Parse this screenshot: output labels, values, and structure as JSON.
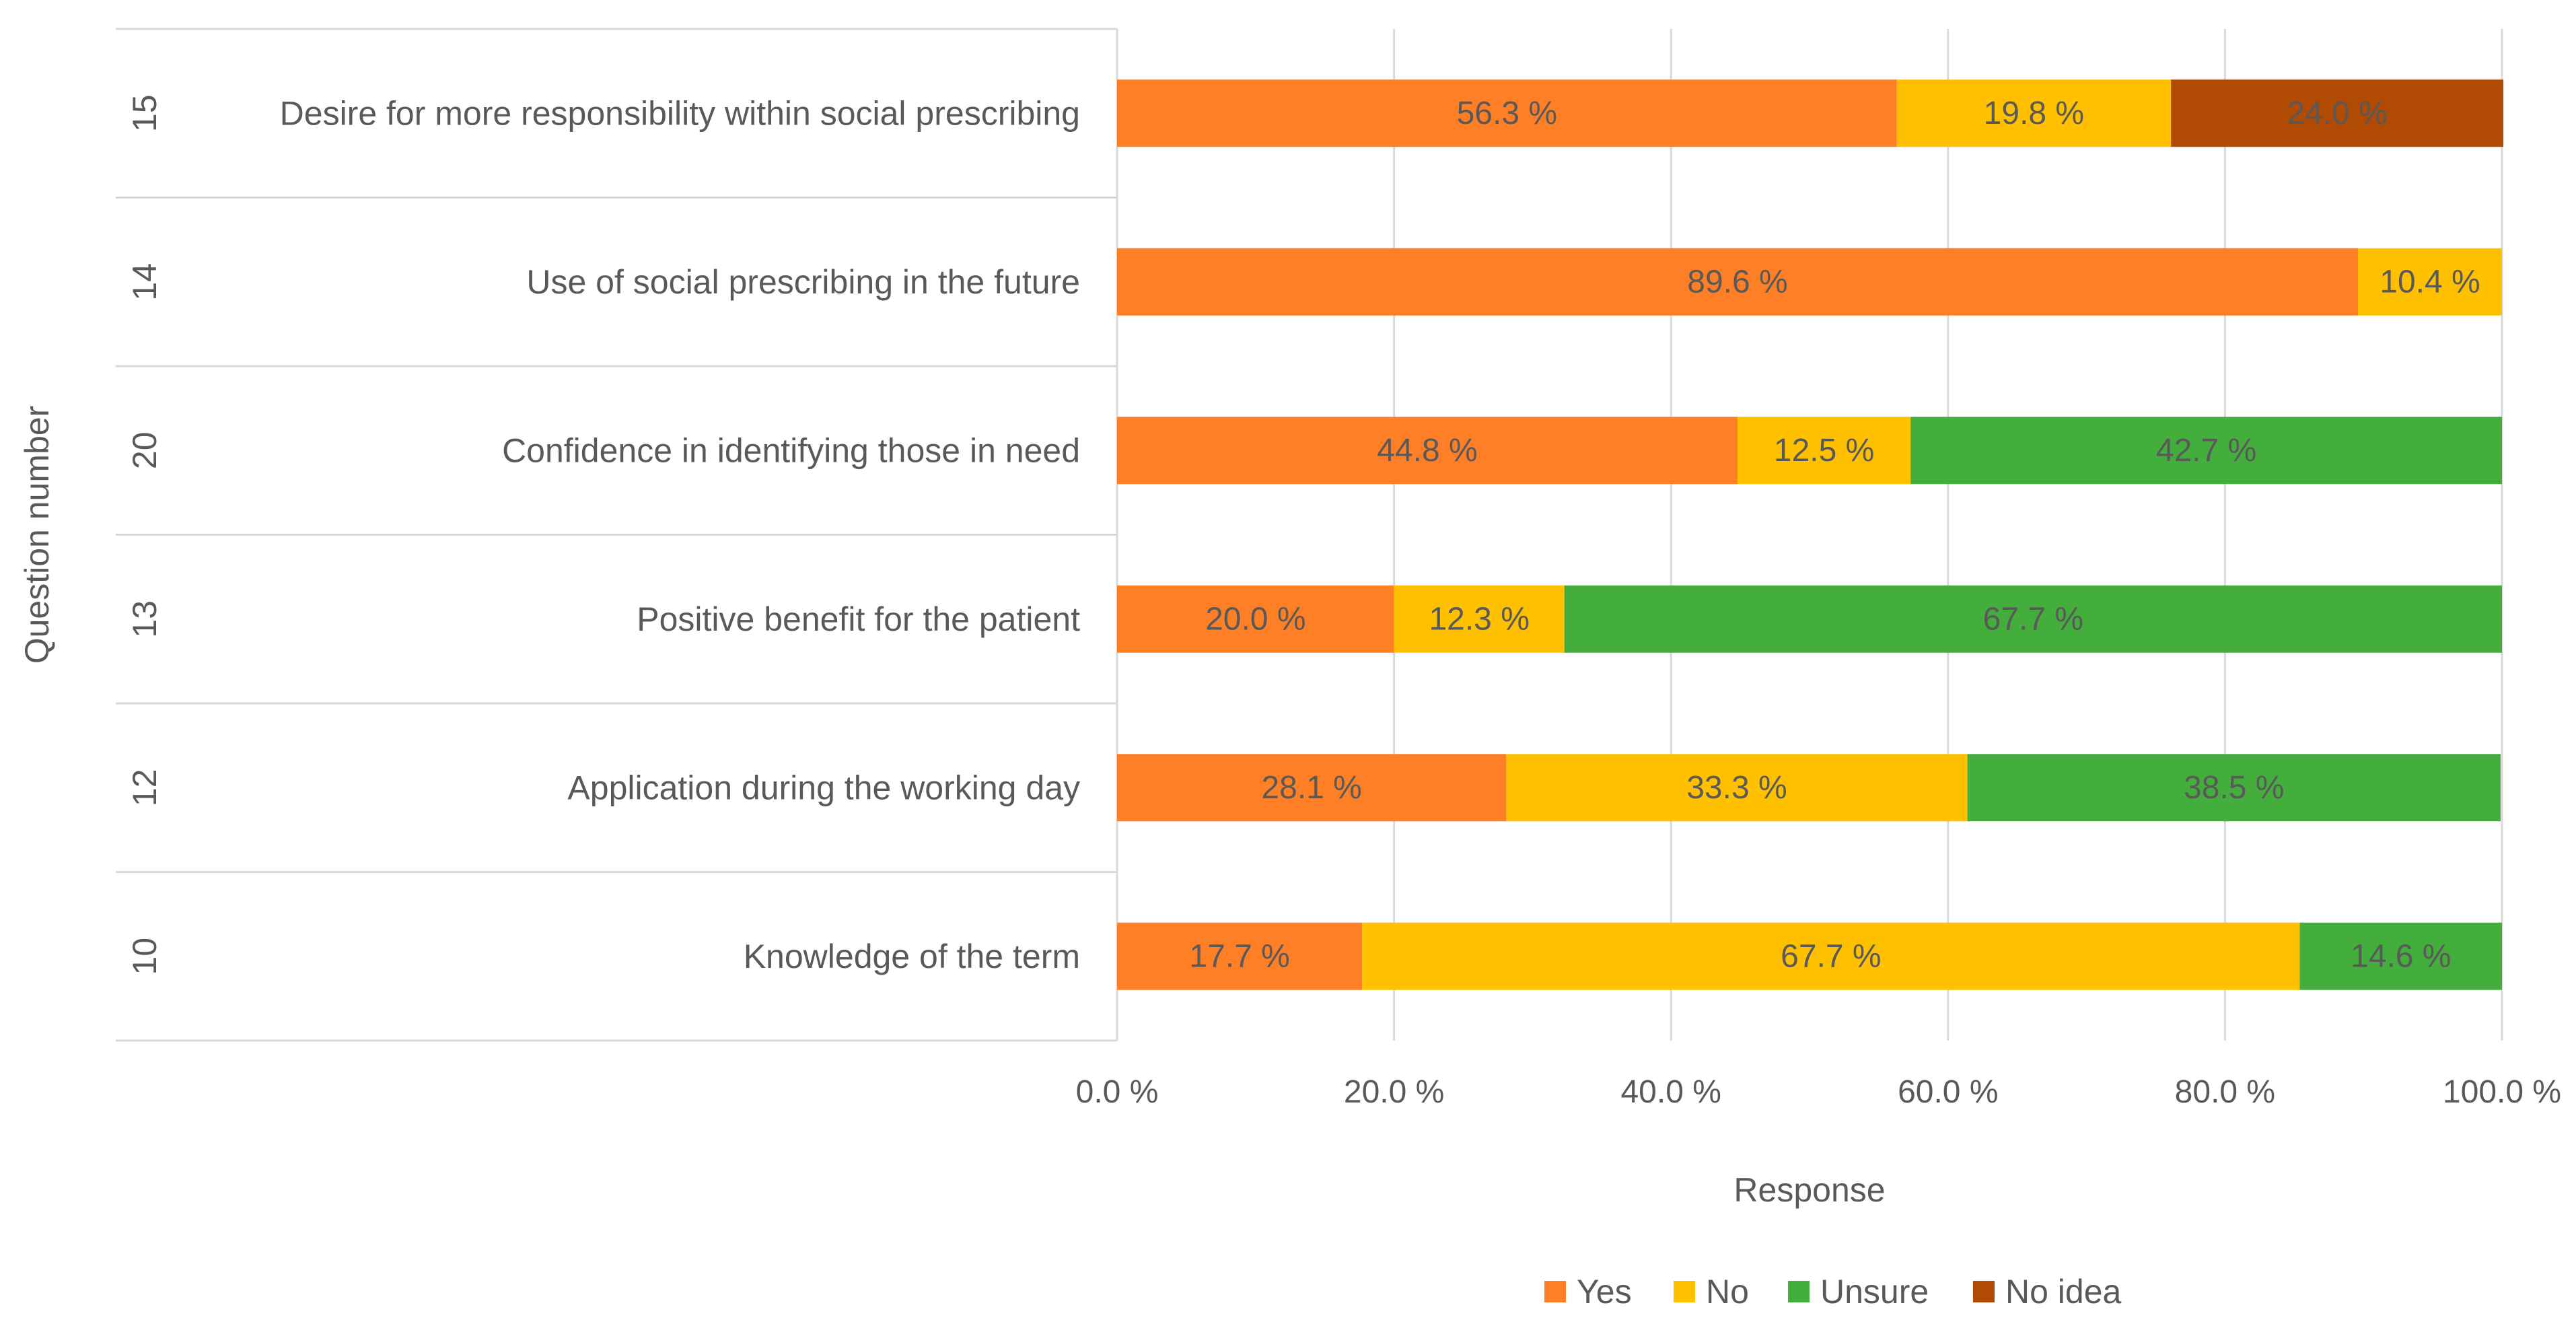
{
  "chart_data": {
    "type": "bar",
    "orientation": "horizontal",
    "stacked": true,
    "title": "",
    "xlabel": "Response",
    "ylabel": "Question number",
    "xlim": [
      0,
      100
    ],
    "x_ticks": [
      "0.0 %",
      "20.0 %",
      "40.0 %",
      "60.0 %",
      "80.0 %",
      "100.0 %"
    ],
    "grid": true,
    "legend_position": "bottom",
    "categories": [
      {
        "question_number": "15",
        "label": "Desire for more responsibility within social prescribing"
      },
      {
        "question_number": "14",
        "label": "Use of social prescribing in the future"
      },
      {
        "question_number": "20",
        "label": "Confidence in identifying those in need"
      },
      {
        "question_number": "13",
        "label": "Positive benefit for the patient"
      },
      {
        "question_number": "12",
        "label": "Application during the working day"
      },
      {
        "question_number": "10",
        "label": "Knowledge of the term"
      }
    ],
    "series": [
      {
        "name": "Yes",
        "color": "#FF7F27",
        "values": [
          56.3,
          89.6,
          44.8,
          20.0,
          28.1,
          17.7
        ],
        "labels": [
          "56.3 %",
          "89.6 %",
          "44.8 %",
          "20.0 %",
          "28.1 %",
          "17.7 %"
        ]
      },
      {
        "name": "No",
        "color": "#FFC000",
        "values": [
          19.8,
          10.4,
          12.5,
          12.3,
          33.3,
          67.7
        ],
        "labels": [
          "19.8 %",
          "10.4 %",
          "12.5 %",
          "12.3 %",
          "33.3 %",
          "67.7 %"
        ]
      },
      {
        "name": "Unsure",
        "color": "#43AE3C",
        "values": [
          0,
          0,
          42.7,
          67.7,
          38.5,
          14.6
        ],
        "labels": [
          "",
          "",
          "42.7 %",
          "67.7 %",
          "38.5 %",
          "14.6 %"
        ]
      },
      {
        "name": "No idea",
        "color": "#B14A02",
        "values": [
          24.0,
          0,
          0,
          0,
          0,
          0
        ],
        "labels": [
          "24.0 %",
          "",
          "",
          "",
          "",
          ""
        ]
      }
    ]
  }
}
